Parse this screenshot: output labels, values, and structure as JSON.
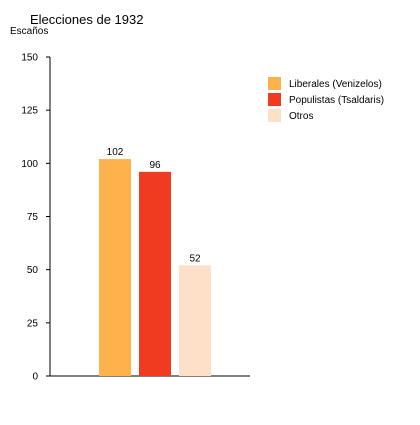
{
  "chart_data": {
    "type": "bar",
    "title": "Elecciones de 1932",
    "ylabel": "Escaños",
    "xlabel": "",
    "ylim": [
      0,
      150
    ],
    "yticks": [
      0,
      25,
      50,
      75,
      100,
      125,
      150
    ],
    "series": [
      {
        "name": "Liberales (Venizelos)",
        "value": 102,
        "color": "#fdb24c"
      },
      {
        "name": "Populistas (Tsaldaris)",
        "value": 96,
        "color": "#f03b20"
      },
      {
        "name": "Otros",
        "value": 52,
        "color": "#fee0c8"
      }
    ],
    "data_labels": [
      "102",
      "96",
      "52"
    ],
    "legend_position": "top-right",
    "grid": false
  }
}
